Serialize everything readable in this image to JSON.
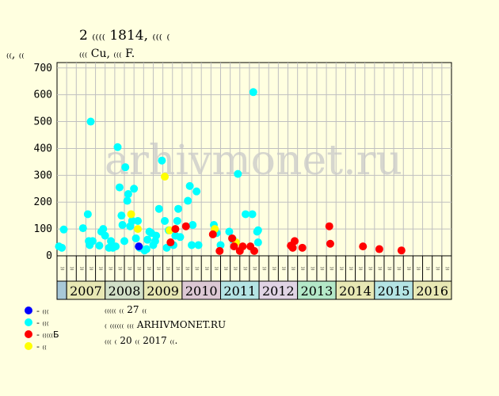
{
  "header": {
    "title": "2 ₍₍₍₍ 1814, ₍₍₍ ₍",
    "subtitle": "₍₍₍ Cu, ₍₍₍ F.",
    "unit": "₍₍, ₍₍"
  },
  "watermark": "arhivmonet.ru",
  "legend": [
    {
      "label": "- ₍₍₍",
      "color": "#0000ff"
    },
    {
      "label": "- ₍₍₍",
      "color": "#00ffff"
    },
    {
      "label": "- ₍₍₍₍₍Б",
      "color": "#ff0000"
    },
    {
      "label": "- ₍₍",
      "color": "#ffff00"
    }
  ],
  "notes": [
    "₍₍₍₍₍ ₍₍ 27 ₍₍",
    "₍ ₍₍₍₍₍₍ ₍₍₍ ARHIVMONET.RU",
    "₍₍₍ ₍ 20 ₍₍ 2017 ₍₍."
  ],
  "chart_data": {
    "type": "scatter",
    "ylim": [
      0,
      720
    ],
    "yticks": [
      0,
      100,
      200,
      300,
      400,
      500,
      600,
      700
    ],
    "grid": true,
    "quarter_labels": [
      "₍₍",
      "₍₍",
      "₍₍",
      "₍₍",
      "₍₍",
      "₍₍",
      "₍₍",
      "₍₍",
      "₍₍",
      "₍₍",
      "₍₍",
      "₍₍",
      "₍₍",
      "₍₍",
      "₍₍",
      "₍₍",
      "₍₍",
      "₍₍",
      "₍₍",
      "₍₍",
      "₍₍",
      "₍₍",
      "₍₍",
      "₍₍",
      "₍₍",
      "₍₍",
      "₍₍",
      "₍₍",
      "₍₍",
      "₍₍",
      "₍₍",
      "₍₍",
      "₍₍",
      "₍₍",
      "₍₍",
      "₍₍",
      "₍₍",
      "₍₍",
      "₍₍",
      "₍₍",
      "₍₍"
    ],
    "years": [
      {
        "label": "2007",
        "color": "#e8e8b4",
        "quarters": 4
      },
      {
        "label": "2008",
        "color": "#d2e0c8",
        "quarters": 4
      },
      {
        "label": "2009",
        "color": "#e8e8b4",
        "quarters": 4
      },
      {
        "label": "2010",
        "color": "#dcc8d4",
        "quarters": 4
      },
      {
        "label": "2011",
        "color": "#b4e4e4",
        "quarters": 4
      },
      {
        "label": "2012",
        "color": "#e0d4e4",
        "quarters": 4
      },
      {
        "label": "2013",
        "color": "#b4e8c8",
        "quarters": 4
      },
      {
        "label": "2014",
        "color": "#e8e8b4",
        "quarters": 4
      },
      {
        "label": "2015",
        "color": "#b4e4e4",
        "quarters": 4
      },
      {
        "label": "2016",
        "color": "#e8e8b4",
        "quarters": 4
      }
    ],
    "first_cell_color": "#a8c8d8",
    "series": [
      {
        "color": "#00ffff",
        "points": [
          [
            0.2,
            35
          ],
          [
            0.5,
            30
          ],
          [
            0.7,
            98
          ],
          [
            2.7,
            103
          ],
          [
            3.2,
            155
          ],
          [
            3.3,
            55
          ],
          [
            3.4,
            40
          ],
          [
            3.5,
            500
          ],
          [
            3.7,
            55
          ],
          [
            4.4,
            38
          ],
          [
            4.6,
            90
          ],
          [
            4.8,
            100
          ],
          [
            5.0,
            75
          ],
          [
            5.4,
            30
          ],
          [
            5.6,
            55
          ],
          [
            5.8,
            30
          ],
          [
            6.1,
            35
          ],
          [
            6.3,
            405
          ],
          [
            6.5,
            255
          ],
          [
            6.7,
            150
          ],
          [
            6.8,
            115
          ],
          [
            7.0,
            55
          ],
          [
            7.1,
            330
          ],
          [
            7.3,
            205
          ],
          [
            7.4,
            230
          ],
          [
            7.6,
            110
          ],
          [
            7.8,
            130
          ],
          [
            8.0,
            250
          ],
          [
            8.2,
            65
          ],
          [
            8.4,
            130
          ],
          [
            8.6,
            30
          ],
          [
            9.1,
            20
          ],
          [
            9.3,
            25
          ],
          [
            9.4,
            60
          ],
          [
            9.6,
            90
          ],
          [
            9.8,
            85
          ],
          [
            10.0,
            40
          ],
          [
            10.2,
            55
          ],
          [
            10.3,
            75
          ],
          [
            10.6,
            175
          ],
          [
            10.9,
            355
          ],
          [
            11.2,
            130
          ],
          [
            11.4,
            30
          ],
          [
            11.6,
            95
          ],
          [
            12.1,
            40
          ],
          [
            12.3,
            75
          ],
          [
            12.5,
            130
          ],
          [
            12.6,
            175
          ],
          [
            12.8,
            70
          ],
          [
            13.6,
            205
          ],
          [
            13.8,
            260
          ],
          [
            14.0,
            40
          ],
          [
            14.1,
            115
          ],
          [
            14.5,
            240
          ],
          [
            14.7,
            40
          ],
          [
            16.3,
            115
          ],
          [
            16.6,
            85
          ],
          [
            17.0,
            40
          ],
          [
            17.9,
            90
          ],
          [
            18.3,
            60
          ],
          [
            18.8,
            305
          ],
          [
            19.6,
            155
          ],
          [
            20.3,
            155
          ],
          [
            20.4,
            610
          ],
          [
            20.8,
            90
          ],
          [
            20.9,
            95
          ],
          [
            20.9,
            50
          ]
        ]
      },
      {
        "color": "#0000ff",
        "points": [
          [
            8.5,
            35
          ]
        ]
      },
      {
        "color": "#ffff00",
        "points": [
          [
            7.7,
            155
          ],
          [
            8.4,
            100
          ],
          [
            11.2,
            295
          ],
          [
            11.7,
            95
          ],
          [
            16.4,
            100
          ],
          [
            18.6,
            50
          ]
        ]
      },
      {
        "color": "#ff0000",
        "points": [
          [
            11.8,
            50
          ],
          [
            12.3,
            100
          ],
          [
            13.4,
            110
          ],
          [
            16.2,
            80
          ],
          [
            16.9,
            18
          ],
          [
            18.2,
            65
          ],
          [
            18.4,
            35
          ],
          [
            19.0,
            18
          ],
          [
            19.3,
            35
          ],
          [
            20.1,
            35
          ],
          [
            20.5,
            18
          ],
          [
            24.3,
            38
          ],
          [
            24.5,
            30
          ],
          [
            24.7,
            55
          ],
          [
            25.5,
            30
          ],
          [
            28.3,
            110
          ],
          [
            28.4,
            45
          ],
          [
            31.8,
            35
          ],
          [
            33.5,
            25
          ],
          [
            35.8,
            20
          ]
        ]
      }
    ]
  }
}
